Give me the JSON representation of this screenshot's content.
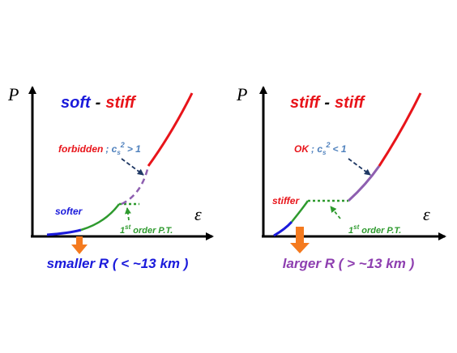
{
  "panels": [
    {
      "y_axis": "P",
      "x_axis": "ε",
      "title": {
        "left": "soft",
        "sep": "-",
        "right": "stiff"
      },
      "annotation": {
        "word": "forbidden",
        "rest": "; c",
        "sub": "s",
        "sup": "2",
        "cond": "> 1"
      },
      "curve_label": "softer",
      "transition": {
        "num": "1",
        "sup": "st",
        "rest": "order P.T."
      },
      "result": "smaller R ( < ~13 km )"
    },
    {
      "y_axis": "P",
      "x_axis": "ε",
      "title": {
        "left": "stiff",
        "sep": "-",
        "right": "stiff"
      },
      "annotation": {
        "word": "OK",
        "rest": "; c",
        "sub": "s",
        "sup": "2",
        "cond": "< 1"
      },
      "curve_label": "stiffer",
      "transition": {
        "num": "1",
        "sup": "st",
        "rest": "order P.T."
      },
      "result": "larger R ( > ~13 km )"
    }
  ]
}
